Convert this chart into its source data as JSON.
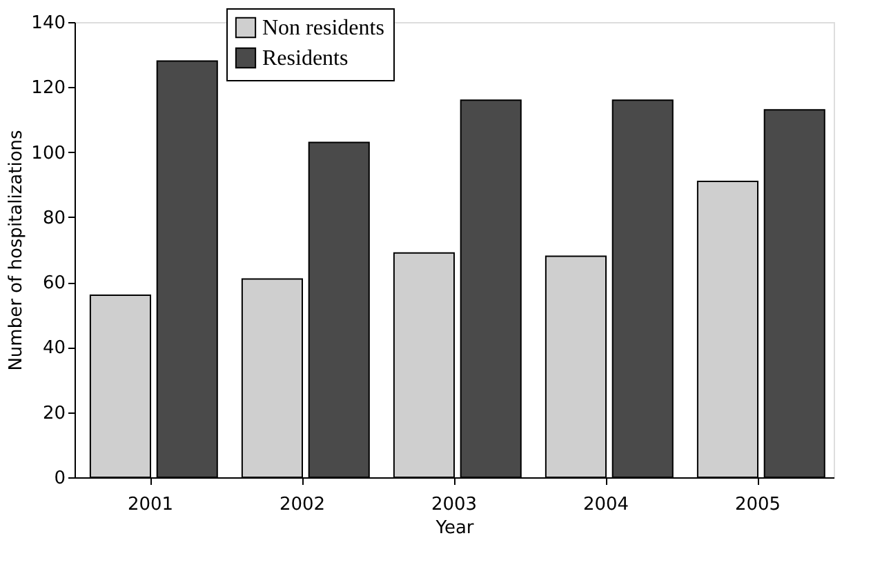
{
  "chart_data": {
    "type": "bar",
    "xlabel": "Year",
    "ylabel": "Number of hospitalizations",
    "categories": [
      "2001",
      "2002",
      "2003",
      "2004",
      "2005"
    ],
    "series": [
      {
        "name": "Non residents",
        "color": "#cfcfcf",
        "values": [
          56,
          61,
          69,
          68,
          91
        ]
      },
      {
        "name": "Residents",
        "color": "#4a4a4a",
        "values": [
          128,
          103,
          116,
          116,
          113
        ]
      }
    ],
    "ylim": [
      0,
      140
    ],
    "yticks": [
      0,
      20,
      40,
      60,
      80,
      100,
      120,
      140
    ],
    "grid": false,
    "legend": "top left"
  }
}
